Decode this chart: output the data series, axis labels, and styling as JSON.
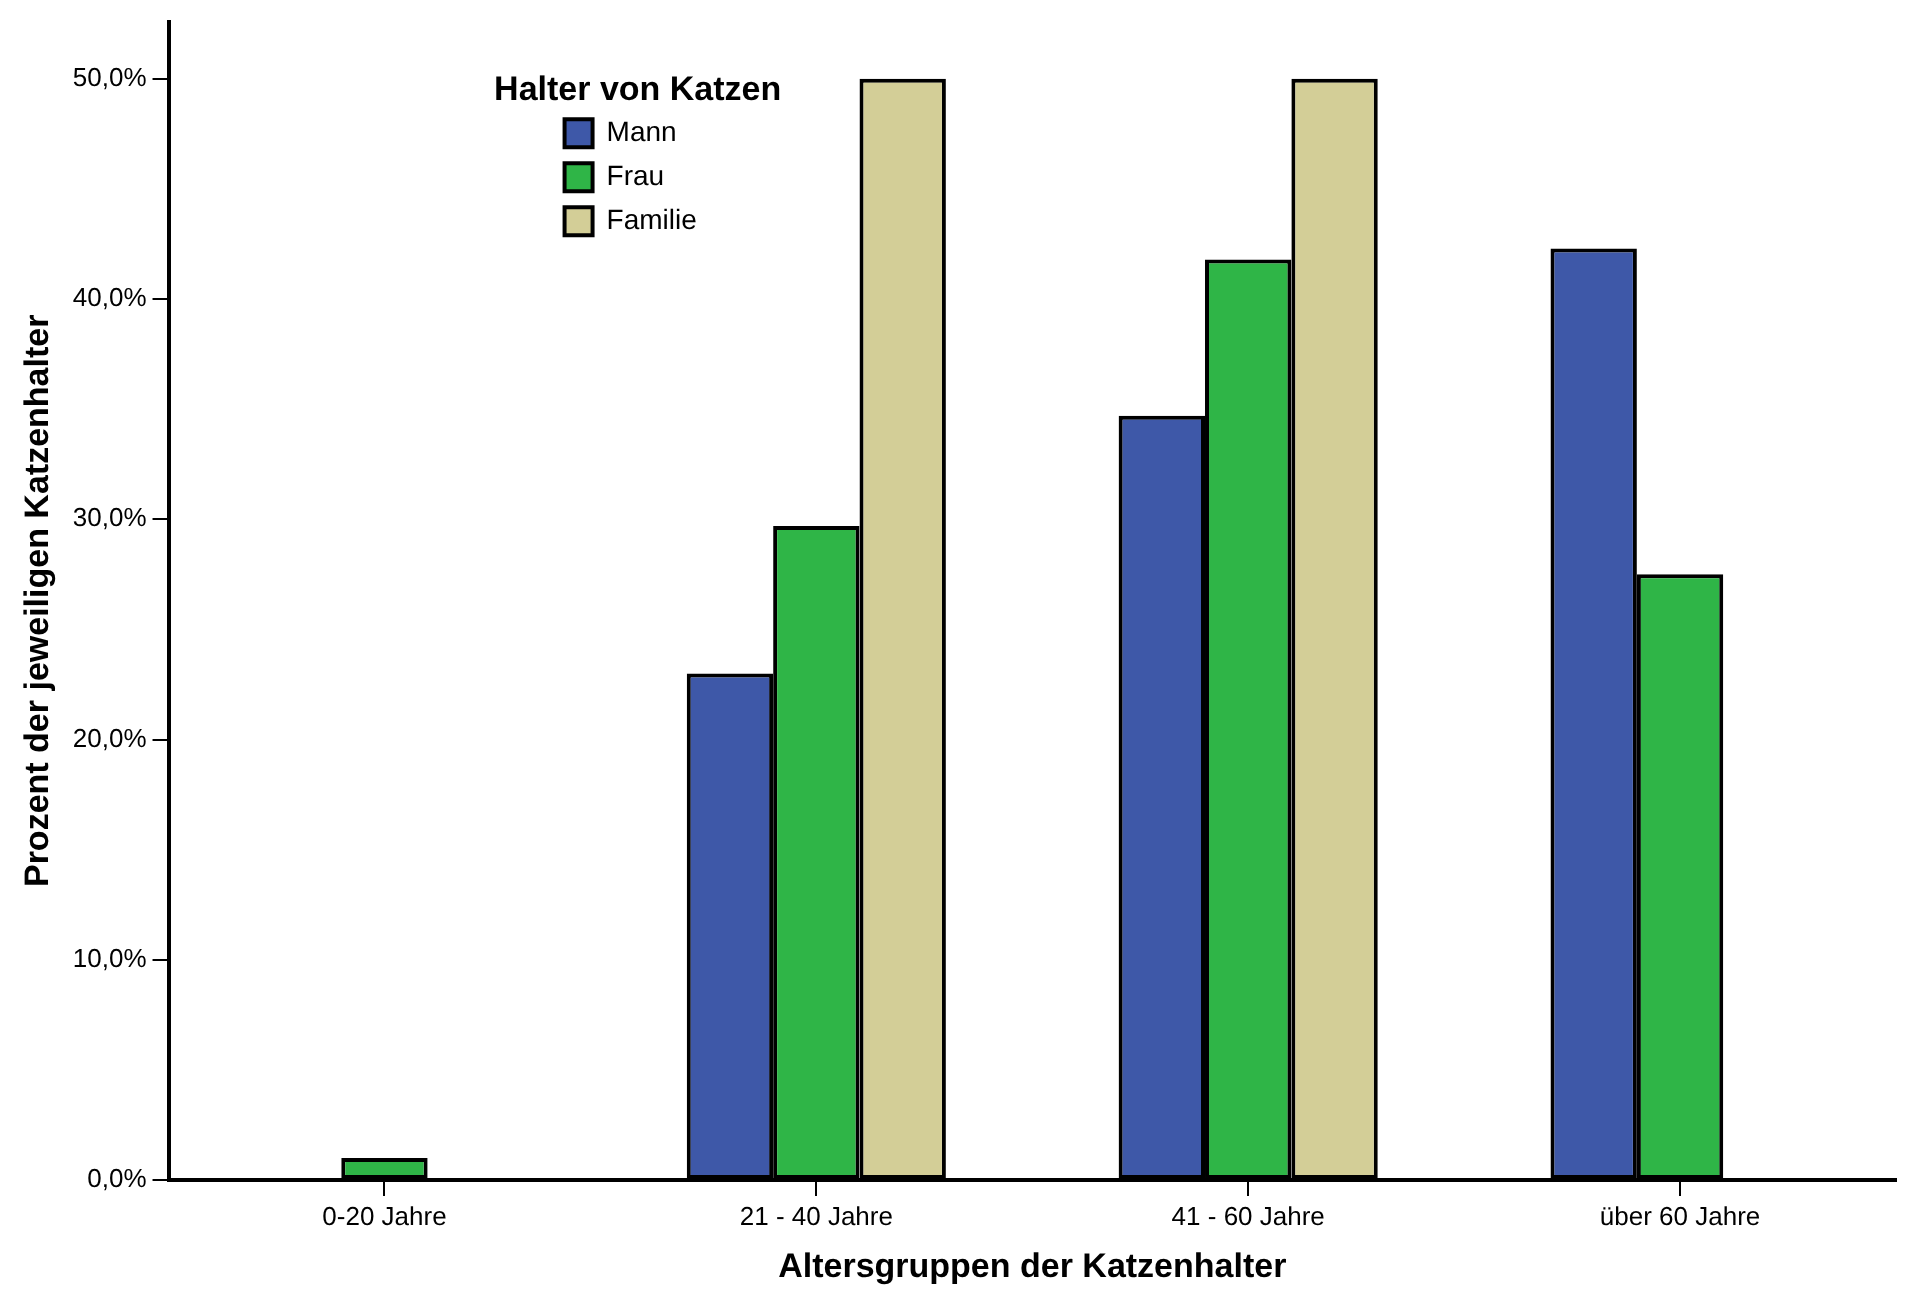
{
  "chart_data": {
    "type": "bar",
    "xlabel": "Altersgruppen der Katzenhalter",
    "ylabel": "Prozent der jeweiligen Katzenhalter",
    "legend_title": "Halter von Katzen",
    "legend": "top left",
    "grid": false,
    "categories": [
      "0-20 Jahre",
      "21 - 40 Jahre",
      "41 - 60 Jahre",
      "über 60 Jahre"
    ],
    "ylim": [
      0,
      52.6
    ],
    "yticks": [
      {
        "value": 0,
        "label": "0,0%"
      },
      {
        "value": 10,
        "label": "10,0%"
      },
      {
        "value": 20,
        "label": "20,0%"
      },
      {
        "value": 30,
        "label": "30,0%"
      },
      {
        "value": 40,
        "label": "40,0%"
      },
      {
        "value": 50,
        "label": "50,0%"
      }
    ],
    "series": [
      {
        "name": "Mann",
        "color": "#3e58a8",
        "values": [
          0,
          23.0,
          34.7,
          42.3
        ]
      },
      {
        "name": "Frau",
        "color": "#2fb547",
        "values": [
          1.0,
          29.7,
          41.8,
          27.5
        ]
      },
      {
        "name": "Familie",
        "color": "#d3ce97",
        "values": [
          0,
          50,
          50,
          0
        ]
      }
    ]
  }
}
